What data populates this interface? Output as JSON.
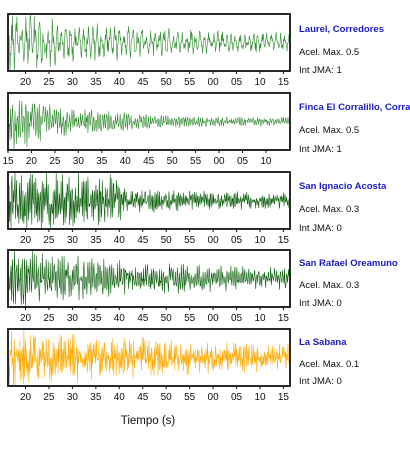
{
  "chart_data": {
    "type": "line",
    "xlabel": "Tiempo (s)",
    "panels": [
      {
        "station": "Laurel, Corredores",
        "acel_label": "Acel. Max. 0.5",
        "int_label": "Int JMA: 1",
        "color": "#2e8b2e",
        "amplitude": 0.5,
        "ticks": [
          "20",
          "25",
          "30",
          "35",
          "40",
          "45",
          "50",
          "55",
          "00",
          "05",
          "10",
          "15"
        ]
      },
      {
        "station": "Finca El Corralillo, Corralillo",
        "acel_label": "Acel. Max. 0.5",
        "int_label": "Int JMA: 1",
        "color": "#2e8b2e",
        "amplitude": 0.5,
        "ticks": [
          "15",
          "20",
          "25",
          "30",
          "35",
          "40",
          "45",
          "50",
          "55",
          "00",
          "05",
          "10"
        ]
      },
      {
        "station": "San Ignacio Acosta",
        "acel_label": "Acel. Max. 0.3",
        "int_label": "Int JMA: 0",
        "color": "#0b5e0b",
        "amplitude": 0.3,
        "ticks": [
          "20",
          "25",
          "30",
          "35",
          "40",
          "45",
          "50",
          "55",
          "00",
          "05",
          "10",
          "15"
        ]
      },
      {
        "station": "San Rafael Oreamuno",
        "acel_label": "Acel. Max. 0.3",
        "int_label": "Int JMA: 0",
        "color": "#0b5e0b",
        "amplitude": 0.3,
        "ticks": [
          "20",
          "25",
          "30",
          "35",
          "40",
          "45",
          "50",
          "55",
          "00",
          "05",
          "10",
          "15"
        ]
      },
      {
        "station": "La Sabana",
        "acel_label": "Acel. Max. 0.1",
        "int_label": "Int JMA: 0",
        "color": "#ffaa00",
        "amplitude": 0.1,
        "ticks": [
          "20",
          "25",
          "30",
          "35",
          "40",
          "45",
          "50",
          "55",
          "00",
          "05",
          "10",
          "15"
        ]
      }
    ]
  }
}
